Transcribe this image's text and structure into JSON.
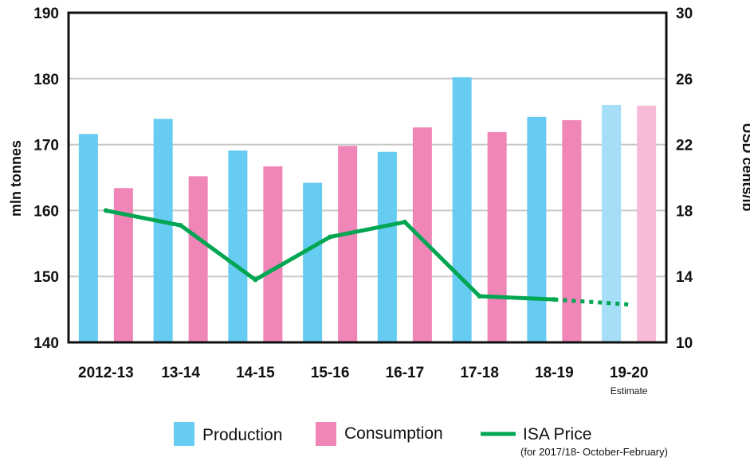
{
  "chart_data": {
    "type": "bar",
    "title": "",
    "categories": [
      "2012-13",
      "13-14",
      "14-15",
      "15-16",
      "16-17",
      "17-18",
      "18-19",
      "19-20"
    ],
    "category_note": {
      "index": 7,
      "text": "Estimate"
    },
    "ylabel": "mln tonnes",
    "y2label": "USD cents/lb",
    "ylim": [
      140,
      190
    ],
    "y2lim": [
      10,
      30
    ],
    "yticks": [
      "140",
      "150",
      "160",
      "170",
      "180",
      "190"
    ],
    "y2ticks": [
      "10",
      "14",
      "18",
      "22",
      "26",
      "30"
    ],
    "grid": true,
    "series": [
      {
        "name": "Production",
        "kind": "bar",
        "axis": "left",
        "color": "#66ccf2",
        "estimate_color": "#a6def7",
        "values": [
          171.6,
          173.9,
          169.1,
          164.2,
          168.9,
          180.2,
          174.2,
          176.0
        ]
      },
      {
        "name": "Consumption",
        "kind": "bar",
        "axis": "left",
        "color": "#f085b8",
        "estimate_color": "#f7bad7",
        "values": [
          163.4,
          165.2,
          166.7,
          169.8,
          172.6,
          171.9,
          173.7,
          175.9
        ]
      },
      {
        "name": "ISA Price",
        "kind": "line",
        "axis": "right",
        "color": "#00a651",
        "note": "(for 2017/18- October-February)",
        "values": [
          18.0,
          17.1,
          13.8,
          16.4,
          17.3,
          12.8,
          12.6,
          12.3
        ],
        "dotted_from_index": 6
      }
    ],
    "legend_position": "bottom"
  }
}
